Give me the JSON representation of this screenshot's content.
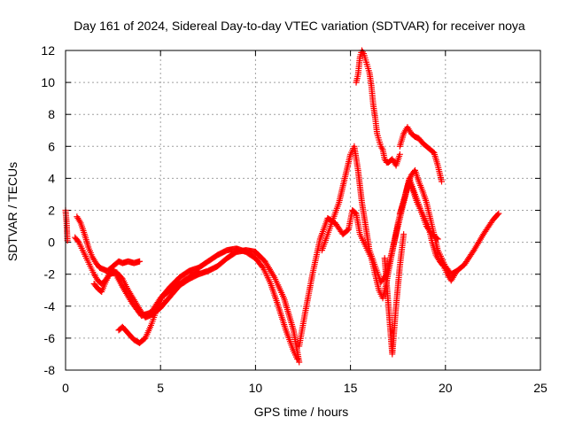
{
  "chart_data": {
    "type": "scatter",
    "title": "Day 161 of 2024, Sidereal Day-to-day VTEC variation (SDTVAR) for receiver noya",
    "xlabel": "GPS time / hours",
    "ylabel": "SDTVAR / TECUs",
    "xlim": [
      0,
      25
    ],
    "ylim": [
      -8,
      12
    ],
    "xticks": [
      0,
      5,
      10,
      15,
      20,
      25
    ],
    "yticks": [
      -8,
      -6,
      -4,
      -2,
      0,
      2,
      4,
      6,
      8,
      10,
      12
    ],
    "grid": true,
    "marker": "+",
    "color": "#ff0000",
    "series": [
      {
        "name": "s1",
        "x": [
          0.0,
          0.05,
          0.1
        ],
        "y": [
          2.0,
          1.3,
          0.1
        ]
      },
      {
        "name": "s2",
        "x": [
          0.6,
          0.8,
          1.0,
          1.2,
          1.4,
          1.6,
          1.8,
          2.0,
          2.2,
          2.5,
          2.8,
          3.0,
          3.3,
          3.6,
          3.9
        ],
        "y": [
          1.6,
          1.2,
          0.5,
          -0.3,
          -0.9,
          -1.3,
          -1.6,
          -1.7,
          -1.8,
          -1.5,
          -1.2,
          -1.3,
          -1.2,
          -1.3,
          -1.2
        ]
      },
      {
        "name": "s3",
        "x": [
          0.5,
          0.7,
          0.9,
          1.1,
          1.3,
          1.5,
          1.7,
          1.9,
          2.1,
          2.3,
          2.6,
          3.0,
          3.5,
          4.0,
          4.5,
          5.0,
          5.5,
          6.0,
          6.5,
          7.0,
          7.5,
          8.0,
          8.5,
          9.0,
          9.5,
          10.0,
          10.4,
          10.8,
          11.2,
          11.6,
          12.0,
          12.2
        ],
        "y": [
          0.3,
          0.0,
          -0.5,
          -1.0,
          -1.5,
          -2.0,
          -2.4,
          -2.6,
          -2.4,
          -2.0,
          -1.9,
          -2.8,
          -3.8,
          -4.6,
          -4.4,
          -3.5,
          -2.8,
          -2.2,
          -1.8,
          -1.6,
          -1.2,
          -0.8,
          -0.5,
          -0.4,
          -0.6,
          -1.0,
          -1.6,
          -2.6,
          -4.0,
          -5.5,
          -6.8,
          -7.3
        ]
      },
      {
        "name": "s4",
        "x": [
          1.5,
          1.7,
          1.9,
          2.1,
          2.3,
          2.5,
          2.7,
          3.0,
          3.3,
          3.6,
          3.9,
          4.2,
          4.6,
          5.0,
          5.5,
          6.0,
          6.5,
          7.0,
          7.5,
          8.0,
          8.5,
          9.0,
          9.5,
          10.0,
          10.5,
          11.0,
          11.5,
          12.0,
          12.3
        ],
        "y": [
          -2.6,
          -2.9,
          -3.1,
          -2.5,
          -2.0,
          -1.8,
          -1.9,
          -2.3,
          -3.0,
          -3.6,
          -4.2,
          -4.7,
          -4.5,
          -4.1,
          -3.4,
          -2.7,
          -2.3,
          -2.0,
          -1.8,
          -1.5,
          -1.0,
          -0.6,
          -0.5,
          -0.6,
          -1.2,
          -2.2,
          -3.5,
          -5.5,
          -7.5
        ]
      },
      {
        "name": "s5",
        "x": [
          2.8,
          3.0,
          3.3,
          3.6,
          3.9,
          4.2,
          4.5,
          4.8,
          5.1,
          5.5,
          6.0,
          6.5,
          7.0
        ],
        "y": [
          -5.5,
          -5.3,
          -5.7,
          -6.1,
          -6.3,
          -6.0,
          -5.2,
          -4.2,
          -3.4,
          -3.0,
          -2.6,
          -2.2,
          -1.8
        ]
      },
      {
        "name": "s6",
        "x": [
          12.3,
          12.6,
          13.0,
          13.4,
          13.8,
          14.2,
          14.6,
          14.9,
          15.1,
          15.3,
          15.5,
          15.7,
          15.9,
          16.1,
          16.3,
          16.5,
          16.7,
          16.9,
          17.1,
          17.3,
          17.5,
          17.7,
          17.9,
          18.1,
          18.3,
          18.5,
          18.7,
          18.9,
          19.1,
          19.3,
          19.5,
          19.7,
          19.9,
          20.1,
          20.3,
          20.6,
          21.0,
          21.5,
          22.0,
          22.5,
          22.8
        ],
        "y": [
          -6.5,
          -4.5,
          -2.0,
          0.2,
          1.5,
          1.2,
          0.5,
          0.8,
          2.0,
          1.8,
          0.5,
          0.0,
          -0.5,
          -1.0,
          -2.0,
          -3.0,
          -3.5,
          -2.5,
          -1.2,
          0.0,
          1.2,
          2.2,
          3.0,
          3.8,
          3.2,
          2.5,
          2.0,
          1.5,
          1.0,
          0.0,
          -0.8,
          -1.2,
          -1.5,
          -2.0,
          -2.4,
          -1.8,
          -1.4,
          -0.5,
          0.5,
          1.4,
          1.8
        ]
      },
      {
        "name": "s7",
        "x": [
          13.5,
          13.8,
          14.1,
          14.4,
          14.7,
          15.0,
          15.2,
          15.4,
          15.6,
          15.8,
          16.0,
          16.3,
          16.6,
          16.9,
          17.2,
          17.5,
          17.8,
          18.1,
          18.4,
          18.7,
          19.0,
          19.3,
          19.6
        ],
        "y": [
          -0.5,
          0.5,
          1.5,
          2.5,
          4.0,
          5.5,
          6.0,
          4.5,
          2.5,
          1.0,
          -0.5,
          -1.5,
          -2.5,
          -2.0,
          -0.5,
          1.0,
          2.5,
          4.0,
          3.0,
          2.0,
          1.0,
          0.5,
          0.2
        ]
      },
      {
        "name": "s8",
        "x": [
          15.3,
          15.4,
          15.5,
          15.6,
          15.7,
          15.8,
          15.9,
          16.0,
          16.1,
          16.2,
          16.3,
          16.4,
          16.5,
          16.6,
          16.7,
          16.8,
          16.9,
          17.0,
          17.2,
          17.4,
          17.6
        ],
        "y": [
          10.0,
          10.5,
          11.6,
          12.0,
          11.8,
          11.4,
          11.0,
          10.6,
          9.8,
          8.6,
          7.8,
          6.8,
          6.4,
          6.0,
          5.8,
          5.2,
          5.0,
          5.0,
          5.2,
          4.8,
          5.5
        ]
      },
      {
        "name": "s9",
        "x": [
          17.6,
          17.8,
          18.0,
          18.2,
          18.4,
          18.6,
          18.8,
          19.0,
          19.2,
          19.4,
          19.6,
          19.8
        ],
        "y": [
          6.0,
          6.8,
          7.2,
          6.8,
          6.6,
          6.5,
          6.2,
          6.0,
          5.8,
          5.6,
          4.8,
          3.8
        ]
      },
      {
        "name": "s10",
        "x": [
          16.8,
          16.9,
          17.0,
          17.1,
          17.2,
          17.4,
          17.6,
          17.8
        ],
        "y": [
          -1.0,
          -2.5,
          -4.0,
          -5.5,
          -7.0,
          -4.0,
          -1.5,
          0.5
        ]
      },
      {
        "name": "s11",
        "x": [
          17.6,
          17.8,
          18.0,
          18.2,
          18.4,
          18.6,
          18.8,
          19.0,
          19.2,
          19.4,
          19.6,
          19.8,
          20.0,
          20.3,
          20.6
        ],
        "y": [
          1.8,
          2.5,
          3.5,
          4.2,
          4.5,
          3.8,
          3.2,
          2.5,
          1.5,
          0.5,
          -0.5,
          -1.0,
          -1.5,
          -2.0,
          -1.8
        ]
      }
    ]
  }
}
